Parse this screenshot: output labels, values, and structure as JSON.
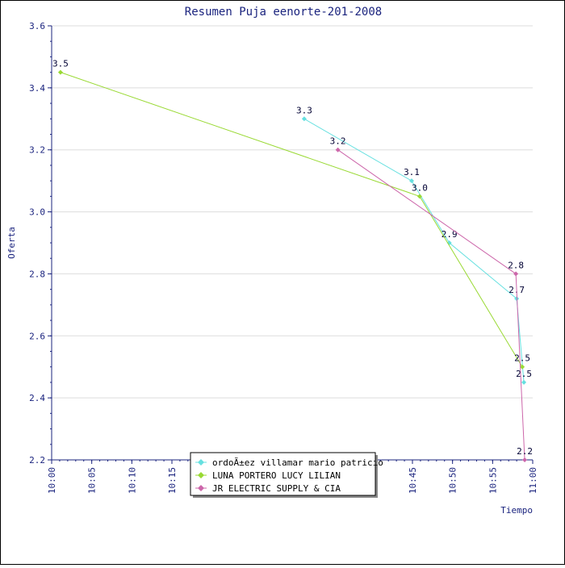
{
  "chart_data": {
    "type": "line",
    "title": "Resumen Puja eenorte-201-2008",
    "xlabel": "Tiempo",
    "ylabel": "Oferta",
    "ylim": [
      2.2,
      3.6
    ],
    "yticks": [
      2.2,
      2.4,
      2.6,
      2.8,
      3.0,
      3.2,
      3.4,
      3.6
    ],
    "ytick_labels": [
      "2.2",
      "2.4",
      "2.6",
      "2.8",
      "3.0",
      "3.2",
      "3.4",
      "3.6"
    ],
    "xlim_minutes": [
      0,
      60
    ],
    "xticks_minutes": [
      0,
      5,
      10,
      15,
      20,
      25,
      30,
      35,
      40,
      45,
      50,
      55,
      60
    ],
    "xtick_labels": [
      "10:00",
      "10:05",
      "10:10",
      "10:15",
      "10:20",
      "10:25",
      "10:30",
      "10:35",
      "10:40",
      "10:45",
      "10:50",
      "10:55",
      "11:00"
    ],
    "grid": true,
    "legend_position": "bottom-center",
    "series": [
      {
        "name": "ordoÃ±ez villamar mario patricio",
        "color": "#66e0e0",
        "points": [
          {
            "x": 31.5,
            "y": 3.3,
            "label": "3.3"
          },
          {
            "x": 44.9,
            "y": 3.1,
            "label": "3.1"
          },
          {
            "x": 49.6,
            "y": 2.9,
            "label": "2.9"
          },
          {
            "x": 58.0,
            "y": 2.72,
            "label": "2.7"
          },
          {
            "x": 58.9,
            "y": 2.45,
            "label": "2.5"
          }
        ]
      },
      {
        "name": "LUNA PORTERO LUCY LILIAN",
        "color": "#99d933",
        "points": [
          {
            "x": 1.1,
            "y": 3.45,
            "label": "3.5"
          },
          {
            "x": 45.9,
            "y": 3.05,
            "label": "3.0"
          },
          {
            "x": 58.7,
            "y": 2.5,
            "label": "2.5"
          }
        ]
      },
      {
        "name": "JR ELECTRIC SUPPLY & CIA",
        "color": "#cc66aa",
        "points": [
          {
            "x": 35.7,
            "y": 3.2,
            "label": "3.2"
          },
          {
            "x": 57.9,
            "y": 2.8,
            "label": "2.8"
          },
          {
            "x": 59.0,
            "y": 2.2,
            "label": "2.2"
          }
        ]
      }
    ]
  }
}
